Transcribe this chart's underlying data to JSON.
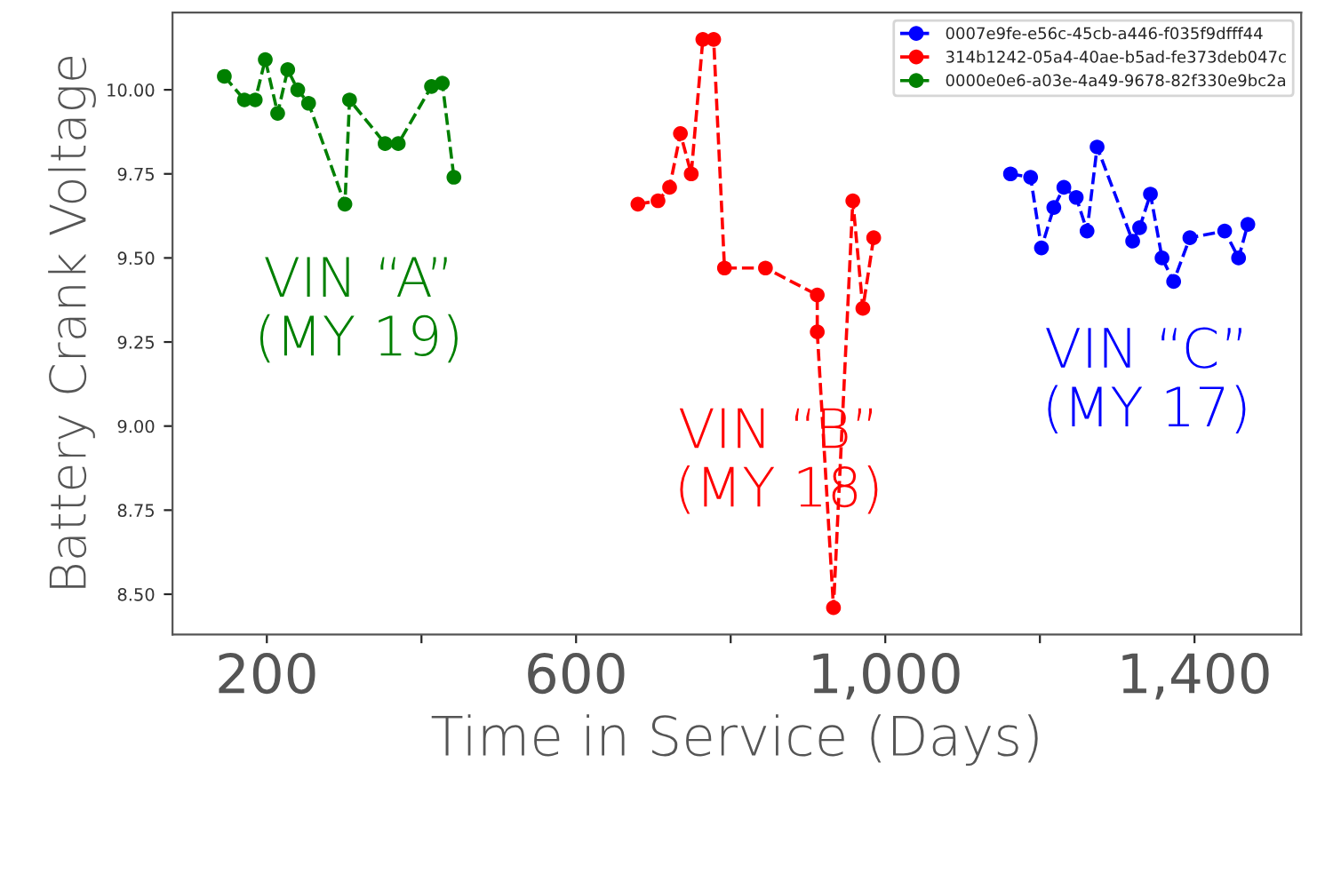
{
  "chart_data": {
    "type": "line",
    "xlabel": "Time in Service (Days)",
    "ylabel": "Battery Crank Voltage",
    "xlim": [
      78,
      1538
    ],
    "xticks": [
      {
        "value": 200,
        "label": "200"
      },
      {
        "value": 400,
        "label": null
      },
      {
        "value": 600,
        "label": "600"
      },
      {
        "value": 800,
        "label": null
      },
      {
        "value": 1000,
        "label": "1,000"
      },
      {
        "value": 1200,
        "label": null
      },
      {
        "value": 1400,
        "label": "1,400"
      }
    ],
    "ylim": [
      8.38,
      10.23
    ],
    "yticks": [
      {
        "value": 8.5,
        "label": "8.50"
      },
      {
        "value": 8.75,
        "label": "8.75"
      },
      {
        "value": 9.0,
        "label": "9.00"
      },
      {
        "value": 9.25,
        "label": "9.25"
      },
      {
        "value": 9.5,
        "label": "9.50"
      },
      {
        "value": 9.75,
        "label": "9.75"
      },
      {
        "value": 10.0,
        "label": "10.00"
      }
    ],
    "marker": "circle",
    "line_style": "dashed",
    "grid": false,
    "legend": "top right",
    "series": [
      {
        "name": "0007e9fe-e56c-45cb-a446-f035f9dfff44",
        "color": "#0000ff",
        "x": [
          1162,
          1188,
          1202,
          1218,
          1231,
          1247,
          1261,
          1274,
          1320,
          1329,
          1343,
          1358,
          1373,
          1394,
          1439,
          1457,
          1469
        ],
        "values": [
          9.75,
          9.74,
          9.53,
          9.65,
          9.71,
          9.68,
          9.58,
          9.83,
          9.55,
          9.59,
          9.69,
          9.5,
          9.43,
          9.56,
          9.58,
          9.5,
          9.6
        ]
      },
      {
        "name": "314b1242-05a4-40ae-b5ad-fe373deb047c",
        "color": "#ff0000",
        "x": [
          680,
          706,
          721,
          735,
          749,
          764,
          778,
          792,
          845,
          912,
          912,
          933,
          958,
          971,
          985
        ],
        "values": [
          9.66,
          9.67,
          9.71,
          9.87,
          9.75,
          10.15,
          10.15,
          9.47,
          9.47,
          9.39,
          9.28,
          8.46,
          9.67,
          9.35,
          9.56
        ]
      },
      {
        "name": "0000e0e6-a03e-4a49-9678-82f330e9bc2a",
        "color": "#008000",
        "x": [
          145,
          171,
          185,
          198,
          214,
          227,
          240,
          254,
          301,
          307,
          353,
          370,
          413,
          427,
          442
        ],
        "values": [
          10.04,
          9.97,
          9.97,
          10.09,
          9.93,
          10.06,
          10.0,
          9.96,
          9.66,
          9.97,
          9.84,
          9.84,
          10.01,
          10.02,
          9.74
        ]
      }
    ],
    "annotations": [
      "VIN “C”\n(MY 17)",
      "VIN “B”\n(MY 18)",
      "VIN “A”\n(MY 19)"
    ]
  }
}
